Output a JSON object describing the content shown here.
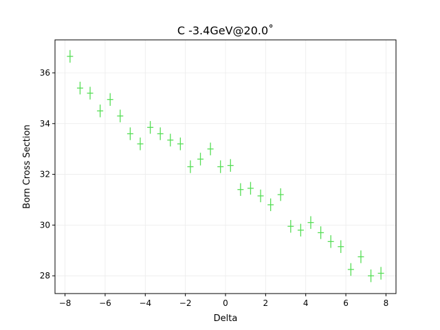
{
  "chart_data": {
    "type": "scatter",
    "title": "C -3.4GeV@20.0˚",
    "xlabel": "Delta",
    "ylabel": "Born Cross Section",
    "xlim": [
      -8.5,
      8.5
    ],
    "ylim": [
      27.3,
      37.3
    ],
    "grid": true,
    "x_ticks": [
      -8,
      -6,
      -4,
      -2,
      0,
      2,
      4,
      6,
      8
    ],
    "x_tick_labels": [
      "−8",
      "−6",
      "−4",
      "−2",
      "0",
      "2",
      "4",
      "6",
      "8"
    ],
    "y_ticks": [
      28,
      30,
      32,
      34,
      36
    ],
    "y_tick_labels": [
      "28",
      "30",
      "32",
      "34",
      "36"
    ],
    "series": [
      {
        "color": "#55dd55",
        "marker": "plus",
        "error_bars": true,
        "points": [
          {
            "x": -7.75,
            "y": 36.65,
            "err": 0.25
          },
          {
            "x": -7.25,
            "y": 35.4,
            "err": 0.25
          },
          {
            "x": -6.75,
            "y": 35.2,
            "err": 0.25
          },
          {
            "x": -6.25,
            "y": 34.5,
            "err": 0.25
          },
          {
            "x": -5.75,
            "y": 34.95,
            "err": 0.25
          },
          {
            "x": -5.25,
            "y": 34.3,
            "err": 0.25
          },
          {
            "x": -4.75,
            "y": 33.6,
            "err": 0.25
          },
          {
            "x": -4.25,
            "y": 33.2,
            "err": 0.25
          },
          {
            "x": -3.75,
            "y": 33.85,
            "err": 0.25
          },
          {
            "x": -3.25,
            "y": 33.6,
            "err": 0.25
          },
          {
            "x": -2.75,
            "y": 33.35,
            "err": 0.25
          },
          {
            "x": -2.25,
            "y": 33.2,
            "err": 0.25
          },
          {
            "x": -1.75,
            "y": 32.3,
            "err": 0.25
          },
          {
            "x": -1.25,
            "y": 32.6,
            "err": 0.25
          },
          {
            "x": -0.75,
            "y": 33.0,
            "err": 0.25
          },
          {
            "x": -0.25,
            "y": 32.3,
            "err": 0.25
          },
          {
            "x": 0.25,
            "y": 32.35,
            "err": 0.25
          },
          {
            "x": 0.75,
            "y": 31.4,
            "err": 0.25
          },
          {
            "x": 1.25,
            "y": 31.45,
            "err": 0.25
          },
          {
            "x": 1.75,
            "y": 31.15,
            "err": 0.25
          },
          {
            "x": 2.25,
            "y": 30.8,
            "err": 0.25
          },
          {
            "x": 2.75,
            "y": 31.2,
            "err": 0.25
          },
          {
            "x": 3.25,
            "y": 29.95,
            "err": 0.25
          },
          {
            "x": 3.75,
            "y": 29.8,
            "err": 0.25
          },
          {
            "x": 4.25,
            "y": 30.1,
            "err": 0.25
          },
          {
            "x": 4.75,
            "y": 29.7,
            "err": 0.25
          },
          {
            "x": 5.25,
            "y": 29.35,
            "err": 0.25
          },
          {
            "x": 5.75,
            "y": 29.15,
            "err": 0.25
          },
          {
            "x": 6.25,
            "y": 28.25,
            "err": 0.25
          },
          {
            "x": 6.75,
            "y": 28.75,
            "err": 0.25
          },
          {
            "x": 7.25,
            "y": 28.0,
            "err": 0.25
          },
          {
            "x": 7.75,
            "y": 28.1,
            "err": 0.25
          }
        ]
      }
    ]
  }
}
